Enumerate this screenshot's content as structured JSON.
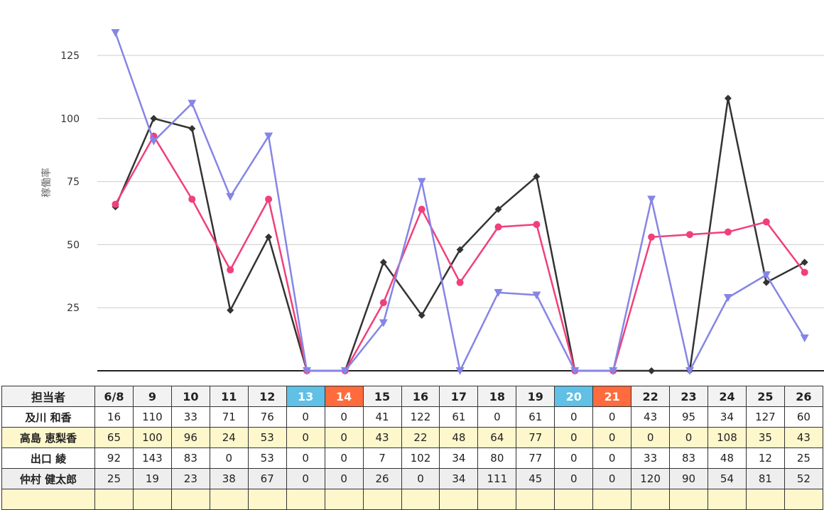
{
  "chart_data": {
    "type": "line",
    "ylabel": "稼働率",
    "yticks": [
      25,
      50,
      75,
      100,
      125
    ],
    "ylim": [
      0,
      140
    ],
    "categories": [
      "6/8",
      "9",
      "10",
      "11",
      "12",
      "13",
      "14",
      "15",
      "16",
      "17",
      "18",
      "19",
      "20",
      "21",
      "22",
      "23",
      "24",
      "25",
      "26"
    ],
    "series": [
      {
        "name": "高島 恵梨香",
        "color": "#333333",
        "marker": "diamond",
        "values": [
          65,
          100,
          96,
          24,
          53,
          0,
          0,
          43,
          22,
          48,
          64,
          77,
          0,
          0,
          0,
          0,
          108,
          35,
          43
        ]
      },
      {
        "color": "#f0407a",
        "marker": "circle",
        "values": [
          66,
          93,
          68,
          40,
          68,
          0,
          0,
          27,
          64,
          35,
          57,
          58,
          0,
          0,
          53,
          54,
          55,
          59,
          39
        ]
      },
      {
        "color": "#8585e6",
        "marker": "triangle",
        "values": [
          134,
          91,
          106,
          69,
          93,
          0,
          0,
          19,
          75,
          0,
          31,
          30,
          0,
          0,
          68,
          0,
          29,
          38,
          13
        ]
      }
    ]
  },
  "table": {
    "header": "担当者",
    "weekend": {
      "sat": [
        5,
        12
      ],
      "sun": [
        6,
        13
      ]
    },
    "rows": [
      {
        "name": "及川 和香",
        "values": [
          "16",
          "110",
          "33",
          "71",
          "76",
          "0",
          "0",
          "41",
          "122",
          "61",
          "0",
          "61",
          "0",
          "0",
          "43",
          "95",
          "34",
          "127",
          "60"
        ]
      },
      {
        "name": "高島 恵梨香",
        "values": [
          "65",
          "100",
          "96",
          "24",
          "53",
          "0",
          "0",
          "43",
          "22",
          "48",
          "64",
          "77",
          "0",
          "0",
          "0",
          "0",
          "108",
          "35",
          "43"
        ]
      },
      {
        "name": "出口 綾",
        "values": [
          "92",
          "143",
          "83",
          "0",
          "53",
          "0",
          "0",
          "7",
          "102",
          "34",
          "80",
          "77",
          "0",
          "0",
          "33",
          "83",
          "48",
          "12",
          "25"
        ]
      },
      {
        "name": "仲村 健太郎",
        "values": [
          "25",
          "19",
          "23",
          "38",
          "67",
          "0",
          "0",
          "26",
          "0",
          "34",
          "111",
          "45",
          "0",
          "0",
          "120",
          "90",
          "54",
          "81",
          "52"
        ]
      },
      {
        "name": "",
        "values": [
          "",
          "",
          "",
          "",
          "",
          "",
          "",
          "",
          "",
          "",
          "",
          "",
          "",
          "",
          "",
          "",
          "",
          "",
          ""
        ]
      }
    ]
  }
}
